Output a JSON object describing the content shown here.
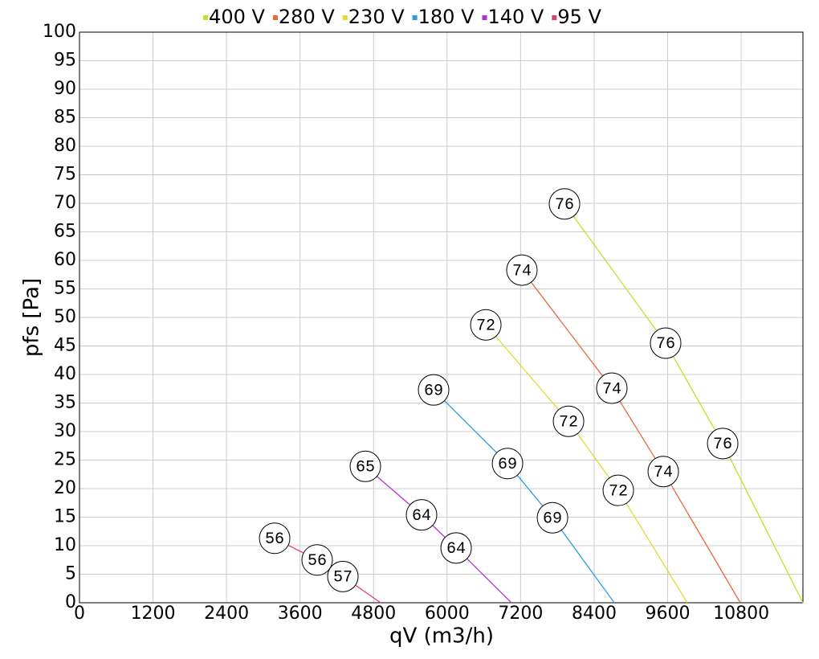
{
  "chart_data": {
    "type": "line",
    "x_label": "qV (m3/h)",
    "y_label": "pfs [Pa]",
    "xlim": [
      0,
      11808
    ],
    "ylim": [
      0,
      100
    ],
    "xticks": [
      0,
      1200,
      2400,
      3600,
      4800,
      6000,
      7200,
      8400,
      9600,
      10800
    ],
    "yticks": [
      0,
      5,
      10,
      15,
      20,
      25,
      30,
      35,
      40,
      45,
      50,
      55,
      60,
      65,
      70,
      75,
      80,
      85,
      90,
      95,
      100
    ],
    "grid": true,
    "legend": "top",
    "series": [
      {
        "name": "400 V",
        "color": "#c8dc28",
        "x": [
          7916,
          9567,
          10498,
          11808
        ],
        "values": [
          69.9,
          45.5,
          27.9,
          0
        ],
        "markers": [
          76,
          76,
          76,
          null
        ]
      },
      {
        "name": "280 V",
        "color": "#e8683c",
        "x": [
          7221,
          8689,
          9528,
          10786
        ],
        "values": [
          58.3,
          37.6,
          23.0,
          0
        ],
        "markers": [
          74,
          74,
          74,
          null
        ]
      },
      {
        "name": "230 V",
        "color": "#e0dc30",
        "x": [
          6632,
          7982,
          8794,
          9921
        ],
        "values": [
          48.7,
          31.8,
          19.7,
          0
        ],
        "markers": [
          72,
          72,
          72,
          null
        ]
      },
      {
        "name": "180 V",
        "color": "#2c9ce0",
        "x": [
          5780,
          6986,
          7720,
          8729
        ],
        "values": [
          37.3,
          24.4,
          14.9,
          0
        ],
        "markers": [
          69,
          69,
          69,
          null
        ]
      },
      {
        "name": "140 V",
        "color": "#b030d8",
        "x": [
          4666,
          5583,
          6147,
          7051
        ],
        "values": [
          23.9,
          15.4,
          9.6,
          0
        ],
        "markers": [
          65,
          64,
          64,
          null
        ]
      },
      {
        "name": "95 V",
        "color": "#e03c78",
        "x": [
          3185,
          3879,
          4299,
          4915
        ],
        "values": [
          11.3,
          7.5,
          4.6,
          0
        ],
        "markers": [
          56,
          56,
          57,
          null
        ]
      }
    ]
  }
}
